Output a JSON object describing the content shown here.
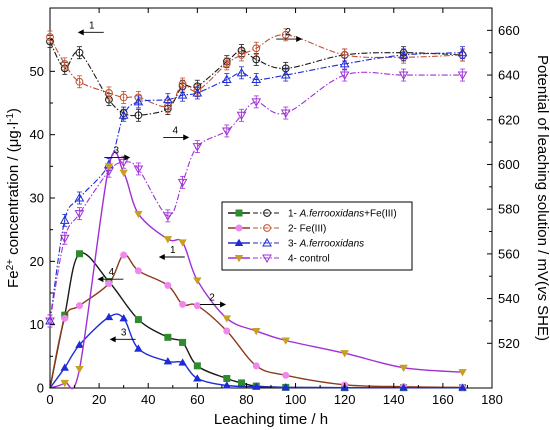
{
  "chart_data": {
    "type": "line",
    "title": "",
    "xlabel": "Leaching time / h",
    "ylabel_left": "Fe2+ concentration / (μg·l-1)",
    "ylabel_left_parts": {
      "base": "Fe",
      "sup1": "2+",
      "mid": " concentration / (μg·l",
      "sup2": "-1",
      "end": ")"
    },
    "ylabel_right": "Potential of leaching solution / mV(vs SHE)",
    "ylabel_right_parts": {
      "prefix": "Potential of leaching solution / mV(",
      "italic": "vs",
      "suffix": " SHE)"
    },
    "xlim": [
      0,
      180
    ],
    "ylim_left": [
      0,
      60
    ],
    "ylim_right": [
      500,
      670
    ],
    "x_ticks": [
      "0",
      "20",
      "40",
      "60",
      "80",
      "100",
      "120",
      "140",
      "160",
      "180"
    ],
    "y_left_ticks": [
      "0",
      "10",
      "20",
      "30",
      "40",
      "50"
    ],
    "y_right_ticks": [
      "520",
      "540",
      "560",
      "580",
      "600",
      "620",
      "640",
      "660"
    ],
    "legend_position": "center-right",
    "legend": [
      {
        "label": "1- A.ferrooxidans+Fe(III)",
        "prefix": "1- ",
        "italic": "A.ferrooxidans",
        "suffix": "+Fe(III)",
        "color": "#1a1a1a",
        "marker": "square"
      },
      {
        "label": "2- Fe(III)",
        "prefix": "2- Fe(III)",
        "italic": "",
        "suffix": "",
        "color": "#8b3a1a",
        "marker": "circle"
      },
      {
        "label": "3- A.ferrooxidans",
        "prefix": "3- ",
        "italic": "A.ferrooxidans",
        "suffix": "",
        "color": "#1e2bd6",
        "marker": "triangle"
      },
      {
        "label": "4- control",
        "prefix": "4- control",
        "italic": "",
        "suffix": "",
        "color": "#a030d6",
        "marker": "triangle-down"
      }
    ],
    "fe_series": [
      {
        "name": "1- A.ferrooxidans+Fe(III)",
        "axis": "left",
        "color": "#1a1a1a",
        "fill": "#2e8b2e",
        "marker": "square",
        "x": [
          0,
          6,
          12,
          24,
          36,
          48,
          54,
          60,
          72,
          78,
          84,
          96,
          120,
          144,
          168
        ],
        "y": [
          0,
          11.5,
          21.2,
          16.8,
          10.8,
          8,
          7.2,
          3.5,
          1.5,
          0.8,
          0.3,
          0.1,
          0.05,
          0.05,
          0.05
        ]
      },
      {
        "name": "2- Fe(III)",
        "axis": "left",
        "color": "#8b3a1a",
        "fill": "#ee88ee",
        "marker": "circle",
        "x": [
          0,
          6,
          12,
          24,
          30,
          36,
          48,
          54,
          60,
          72,
          84,
          96,
          120,
          144,
          168
        ],
        "y": [
          0,
          11,
          13,
          16.5,
          21,
          18.5,
          16.2,
          13.2,
          13,
          9,
          3.5,
          2,
          0.5,
          0.2,
          0.1
        ]
      },
      {
        "name": "3- A.ferrooxidans",
        "axis": "left",
        "color": "#1e2bd6",
        "fill": "#1e2bd6",
        "marker": "triangle",
        "x": [
          0,
          6,
          12,
          24,
          30,
          36,
          48,
          54,
          60,
          72,
          84,
          96,
          120,
          144,
          168
        ],
        "y": [
          0,
          3.2,
          6.8,
          11.2,
          11,
          6.2,
          4.2,
          4,
          1.5,
          0.4,
          0.2,
          0.1,
          0.05,
          0.05,
          0.05
        ]
      },
      {
        "name": "4- control",
        "axis": "left",
        "color": "#a030d6",
        "fill": "#c8a020",
        "marker": "triangle-down",
        "x": [
          0,
          6,
          12,
          24,
          30,
          36,
          48,
          54,
          60,
          72,
          84,
          96,
          120,
          144,
          168
        ],
        "y": [
          0,
          0.8,
          3,
          35,
          34,
          27.5,
          23.5,
          23,
          17,
          11,
          9,
          7.5,
          5.5,
          3.2,
          2.5
        ]
      }
    ],
    "potential_series": [
      {
        "name": "1 potential",
        "axis": "right",
        "color": "#1a1a1a",
        "marker": "circle-open",
        "x": [
          0,
          6,
          12,
          24,
          30,
          36,
          48,
          54,
          60,
          72,
          78,
          84,
          96,
          120,
          144,
          168
        ],
        "y": [
          655,
          643,
          650,
          629,
          623,
          622,
          625,
          635,
          635,
          646,
          651,
          647,
          643,
          649,
          650,
          649
        ]
      },
      {
        "name": "2 potential",
        "axis": "right",
        "color": "#c05030",
        "marker": "circle-open",
        "x": [
          0,
          6,
          12,
          24,
          30,
          36,
          48,
          54,
          60,
          72,
          78,
          84,
          96,
          120,
          144,
          168
        ],
        "y": [
          657,
          645,
          637,
          632,
          630,
          630,
          626,
          636,
          633,
          645,
          649,
          652,
          658,
          649,
          648,
          649
        ]
      },
      {
        "name": "3 potential",
        "axis": "right",
        "color": "#1e2bd6",
        "marker": "triangle-open",
        "x": [
          0,
          6,
          12,
          24,
          30,
          36,
          48,
          54,
          60,
          72,
          78,
          84,
          96,
          120,
          144,
          168
        ],
        "y": [
          530,
          575,
          585,
          600,
          622,
          628,
          629,
          631,
          632,
          638,
          641,
          638,
          640,
          645,
          649,
          650
        ]
      },
      {
        "name": "4 potential",
        "axis": "right",
        "color": "#a030d6",
        "marker": "triangle-down-open",
        "x": [
          0,
          6,
          12,
          24,
          30,
          36,
          48,
          54,
          60,
          72,
          78,
          84,
          96,
          120,
          144,
          168
        ],
        "y": [
          530,
          567,
          578,
          597,
          601,
          598,
          577,
          592,
          608,
          615,
          622,
          628,
          623,
          640,
          640,
          640
        ]
      }
    ],
    "annotations": [
      {
        "text": "1",
        "tx": 17,
        "ty": 660,
        "axis": "right",
        "arrow": "left"
      },
      {
        "text": "2",
        "tx": 97,
        "ty": 657,
        "axis": "right",
        "arrow": "right"
      },
      {
        "text": "3",
        "tx": 27,
        "ty": 604,
        "axis": "right",
        "arrow": "right"
      },
      {
        "text": "4",
        "tx": 51,
        "ty": 613,
        "axis": "right",
        "arrow": "right"
      },
      {
        "text": "1",
        "tx": 50,
        "ty": 21,
        "axis": "left",
        "arrow": "left"
      },
      {
        "text": "2",
        "tx": 66,
        "ty": 13.5,
        "axis": "left",
        "arrow": "right"
      },
      {
        "text": "3",
        "tx": 30,
        "ty": 8,
        "axis": "left",
        "arrow": "left"
      },
      {
        "text": "4",
        "tx": 25,
        "ty": 17.5,
        "axis": "left",
        "arrow": "left"
      }
    ]
  }
}
